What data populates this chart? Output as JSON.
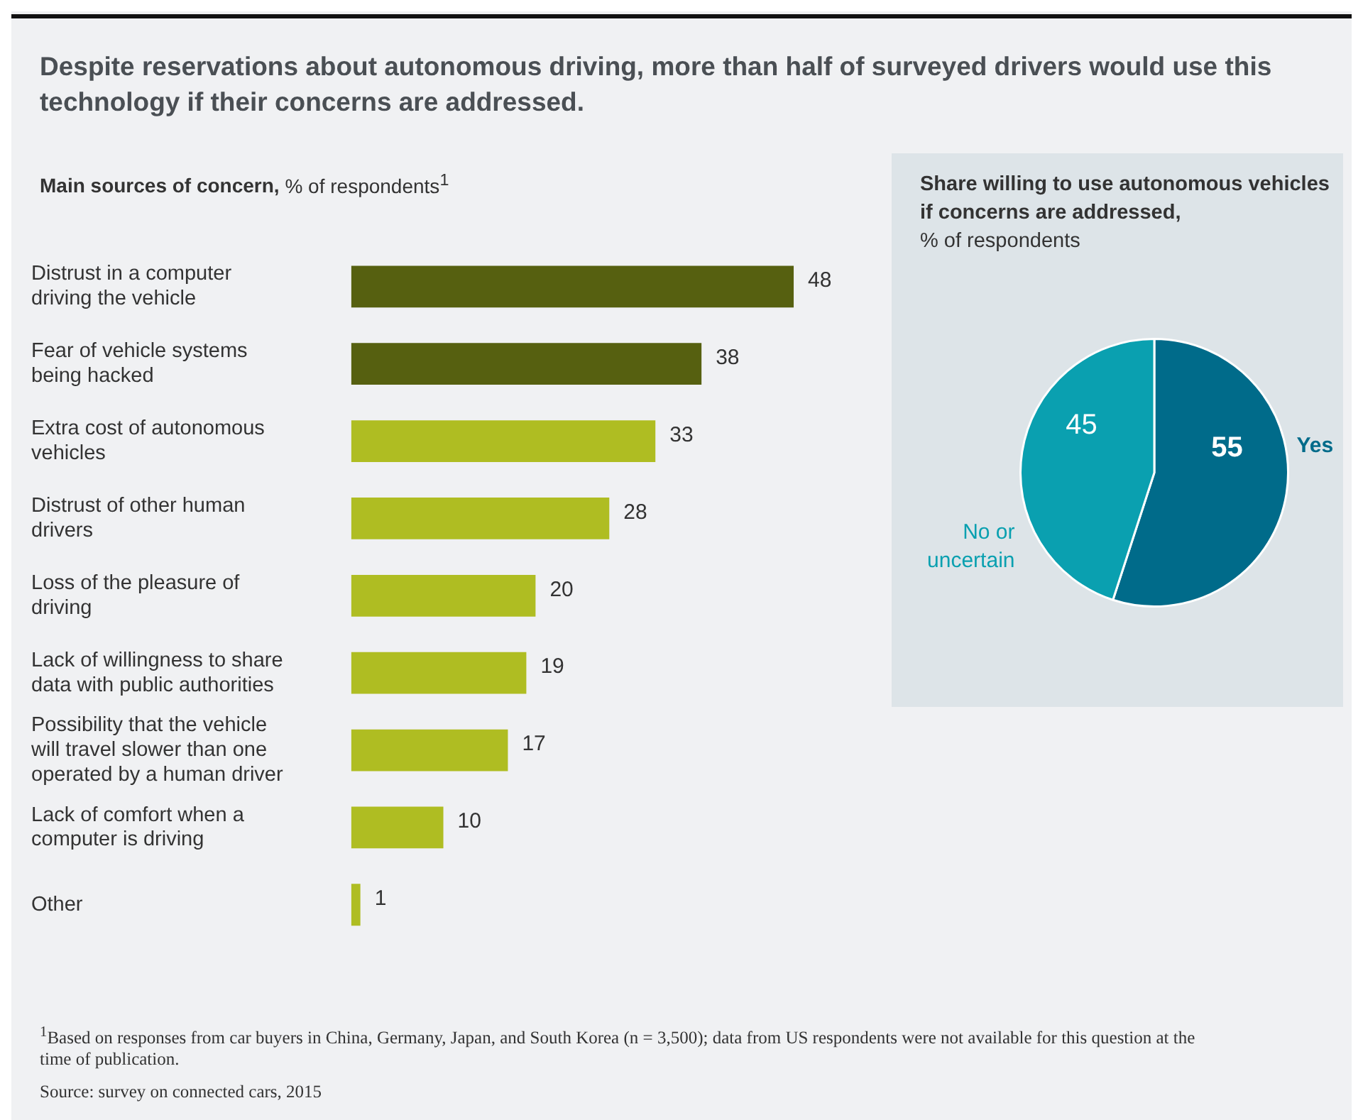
{
  "chart_data": [
    {
      "type": "bar",
      "orientation": "horizontal",
      "title": "Despite reservations about autonomous driving, more than half of surveyed drivers would use this technology if their concerns are addressed.",
      "subtitle": "Main sources of concern, % of respondents$^{1}$",
      "categories": [
        "Distrust in a computer driving the vehicle",
        "Fear of vehicle systems being hacked",
        "Extra cost of autonomous vehicles",
        "Distrust of other human drivers",
        "Loss of the pleasure of driving",
        "Lack of willingness to share data with public authorities",
        "Possibility that the vehicle will travel slower than one operated by a human driver",
        "Lack of comfort when a computer is driving",
        "Other"
      ],
      "values": [
        48,
        38,
        33,
        28,
        20,
        19,
        17,
        10,
        1
      ],
      "colors": [
        "#566010",
        "#566010",
        "#afbd22",
        "#afbd22",
        "#afbd22",
        "#afbd22",
        "#afbd22",
        "#afbd22",
        "#afbd22"
      ],
      "data_labels": true,
      "annotations": [
        "$^{1}$Based on responses from car buyers in China, Germany, Japan, and South Korea (n = 3,500); data from US respondents were not available for this question at the time of publication.",
        "Source: survey on connected cars, 2015"
      ]
    },
    {
      "type": "pie",
      "title": "Share willing to use autonomous vehicles if concerns are addressed,",
      "subtitle": "% of respondents",
      "categories": [
        "Yes",
        "No or uncertain"
      ],
      "values": [
        55,
        45
      ],
      "colors": [
        "#006b8a",
        "#0aa0b0"
      ],
      "data_labels": true
    }
  ]
}
